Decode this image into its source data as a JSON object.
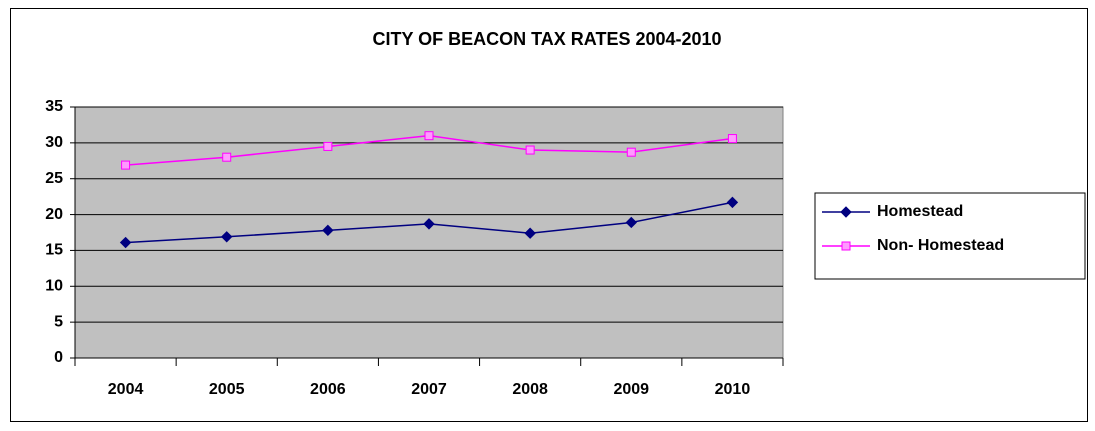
{
  "chart_data": {
    "type": "line",
    "title": "CITY OF BEACON TAX RATES 2004-2010",
    "categories": [
      "2004",
      "2005",
      "2006",
      "2007",
      "2008",
      "2009",
      "2010"
    ],
    "series": [
      {
        "name": "Homestead",
        "color": "#000080",
        "marker": "diamond",
        "values": [
          16.1,
          16.9,
          17.8,
          18.7,
          17.4,
          18.9,
          21.7
        ]
      },
      {
        "name": "Non- Homestead",
        "color": "#ff00ff",
        "marker": "square",
        "values": [
          26.9,
          28.0,
          29.5,
          31.0,
          29.0,
          28.7,
          30.6
        ]
      }
    ],
    "ylim": [
      0,
      35
    ],
    "yticks": [
      0,
      5,
      10,
      15,
      20,
      25,
      30,
      35
    ],
    "grid": true,
    "legend": "right"
  }
}
